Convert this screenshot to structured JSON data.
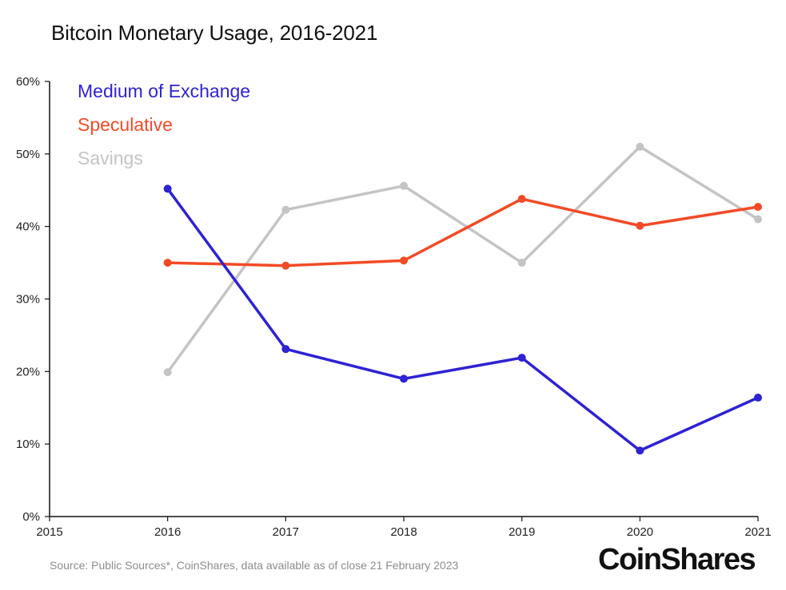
{
  "title": "Bitcoin Monetary Usage, 2016-2021",
  "source": "Source: Public Sources*, CoinShares, data available as of close 21 February 2023",
  "brand": "CoinShares",
  "colors": {
    "medium_of_exchange": "#2e22d4",
    "speculative": "#f24a26",
    "savings": "#c4c4c4",
    "axis": "#111111"
  },
  "chart_data": {
    "type": "line",
    "title": "Bitcoin Monetary Usage, 2016-2021",
    "xlabel": "",
    "ylabel": "",
    "x": [
      2016,
      2017,
      2018,
      2019,
      2020,
      2021
    ],
    "xlim": [
      2015,
      2021
    ],
    "xticks": [
      "2015",
      "2016",
      "2017",
      "2018",
      "2019",
      "2020",
      "2021"
    ],
    "ylim": [
      0,
      60
    ],
    "yticks": [
      "0%",
      "10%",
      "20%",
      "30%",
      "40%",
      "50%",
      "60%"
    ],
    "grid": false,
    "legend": "top-left",
    "series": [
      {
        "name": "Medium of Exchange",
        "color_key": "medium_of_exchange",
        "values": [
          45.2,
          23.1,
          19.0,
          21.9,
          9.1,
          16.4
        ]
      },
      {
        "name": "Speculative",
        "color_key": "speculative",
        "values": [
          35.0,
          34.6,
          35.3,
          43.8,
          40.1,
          42.7
        ]
      },
      {
        "name": "Savings",
        "color_key": "savings",
        "values": [
          19.9,
          42.3,
          45.6,
          35.0,
          51.0,
          41.0
        ]
      }
    ]
  }
}
